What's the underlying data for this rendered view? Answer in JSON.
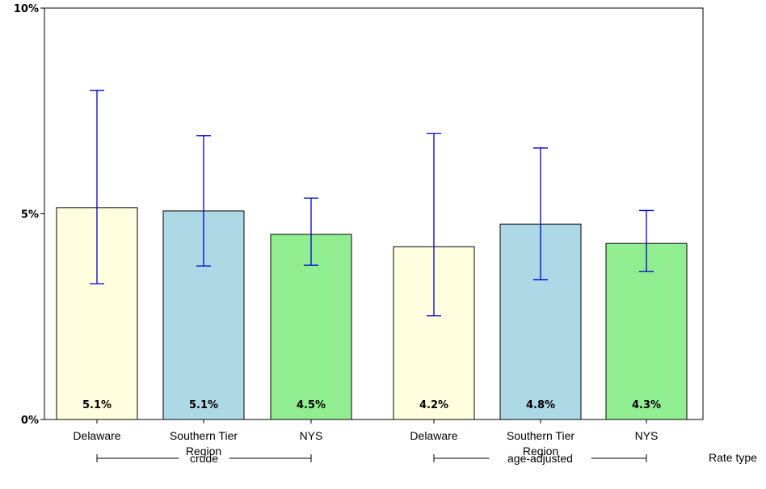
{
  "chart_data": {
    "type": "bar",
    "ylim": [
      0,
      10
    ],
    "yticks": [
      {
        "value": 0,
        "label": "0%"
      },
      {
        "value": 5,
        "label": "5%"
      },
      {
        "value": 10,
        "label": "10%"
      }
    ],
    "bars": [
      {
        "category": [
          "Delaware"
        ],
        "group": "crude",
        "value": 5.15,
        "ci_low": 3.3,
        "ci_high": 8.0,
        "label": "5.1%",
        "color": "#ffffe0"
      },
      {
        "category": [
          "Southern Tier",
          "Region"
        ],
        "group": "crude",
        "value": 5.07,
        "ci_low": 3.73,
        "ci_high": 6.9,
        "label": "5.1%",
        "color": "#add8e6"
      },
      {
        "category": [
          "NYS"
        ],
        "group": "crude",
        "value": 4.5,
        "ci_low": 3.75,
        "ci_high": 5.38,
        "label": "4.5%",
        "color": "#90ee90"
      },
      {
        "category": [
          "Delaware"
        ],
        "group": "age-adjusted",
        "value": 4.2,
        "ci_low": 2.52,
        "ci_high": 6.95,
        "label": "4.2%",
        "color": "#ffffe0"
      },
      {
        "category": [
          "Southern Tier",
          "Region"
        ],
        "group": "age-adjusted",
        "value": 4.75,
        "ci_low": 3.4,
        "ci_high": 6.6,
        "label": "4.8%",
        "color": "#add8e6"
      },
      {
        "category": [
          "NYS"
        ],
        "group": "age-adjusted",
        "value": 4.28,
        "ci_low": 3.6,
        "ci_high": 5.08,
        "label": "4.3%",
        "color": "#90ee90"
      }
    ],
    "groups": [
      "crude",
      "age-adjusted"
    ],
    "group_axis_label": "Rate type",
    "errorbar_color": "#0000cc",
    "grid": false,
    "legend": "none"
  }
}
